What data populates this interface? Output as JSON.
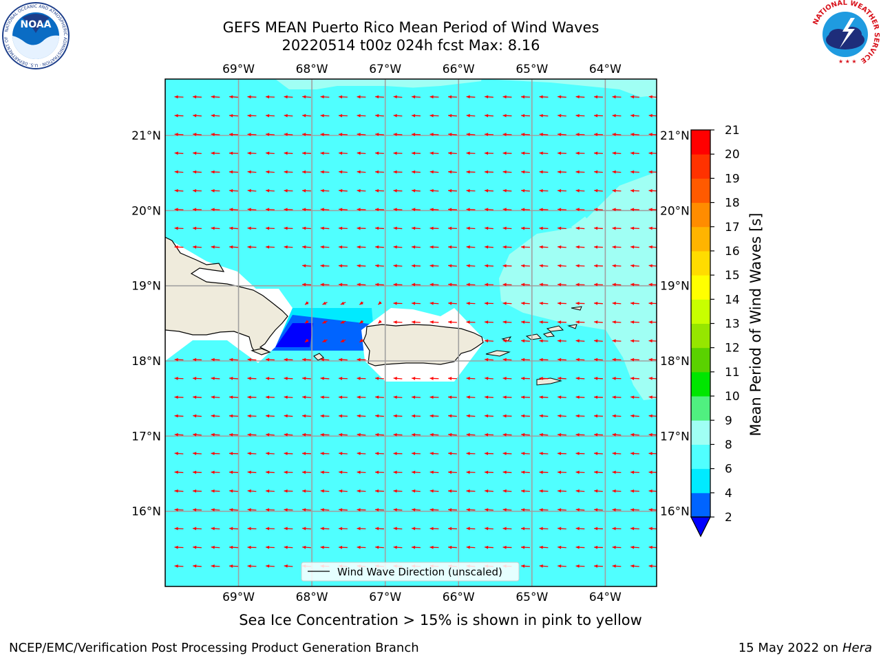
{
  "title": {
    "line1": "GEFS MEAN Puerto Rico Mean Period of Wind Waves",
    "line2": "20220514 t00z 024h fcst   Max: 8.16"
  },
  "logos": {
    "left": {
      "name": "noaa-logo",
      "text": "NOAA",
      "ring": "NATIONAL OCEANIC AND ATMOSPHERIC ADMINISTRATION · U.S. DEPARTMENT OF COMMERCE"
    },
    "right": {
      "name": "nws-logo",
      "ring": "NATIONAL WEATHER SERVICE"
    }
  },
  "map": {
    "lon_range": [
      -70.0,
      -63.3
    ],
    "lat_range": [
      15.0,
      21.75
    ],
    "lon_ticks": [
      "69°W",
      "68°W",
      "67°W",
      "66°W",
      "65°W",
      "64°W"
    ],
    "lat_ticks": [
      "16°N",
      "17°N",
      "18°N",
      "19°N",
      "20°N",
      "21°N"
    ],
    "grid": true,
    "arrow_color": "#ff0000",
    "land_color": "#efebdc",
    "legend_label": "Wind Wave Direction (unscaled)"
  },
  "colorbar": {
    "label": "Mean Period of Wind Waves [s]",
    "ticks": [
      "2",
      "4",
      "6",
      "8",
      "9",
      "10",
      "11",
      "12",
      "13",
      "14",
      "15",
      "16",
      "17",
      "18",
      "19",
      "20",
      "21"
    ],
    "colors": [
      "#0064ff",
      "#00eaff",
      "#50ffff",
      "#a0fff4",
      "#50f080",
      "#00e600",
      "#5ad200",
      "#96e600",
      "#c8ff00",
      "#ffff00",
      "#ffdc00",
      "#ffb400",
      "#ff8c00",
      "#ff5a00",
      "#ff3200",
      "#ff0000"
    ],
    "under_color": "#0000ff"
  },
  "footer": {
    "note": "Sea Ice Concentration > 15% is shown in pink to yellow",
    "left": "NCEP/EMC/Verification Post Processing Product Generation Branch",
    "right_date": "15 May 2022 on",
    "right_host": "Hera"
  }
}
